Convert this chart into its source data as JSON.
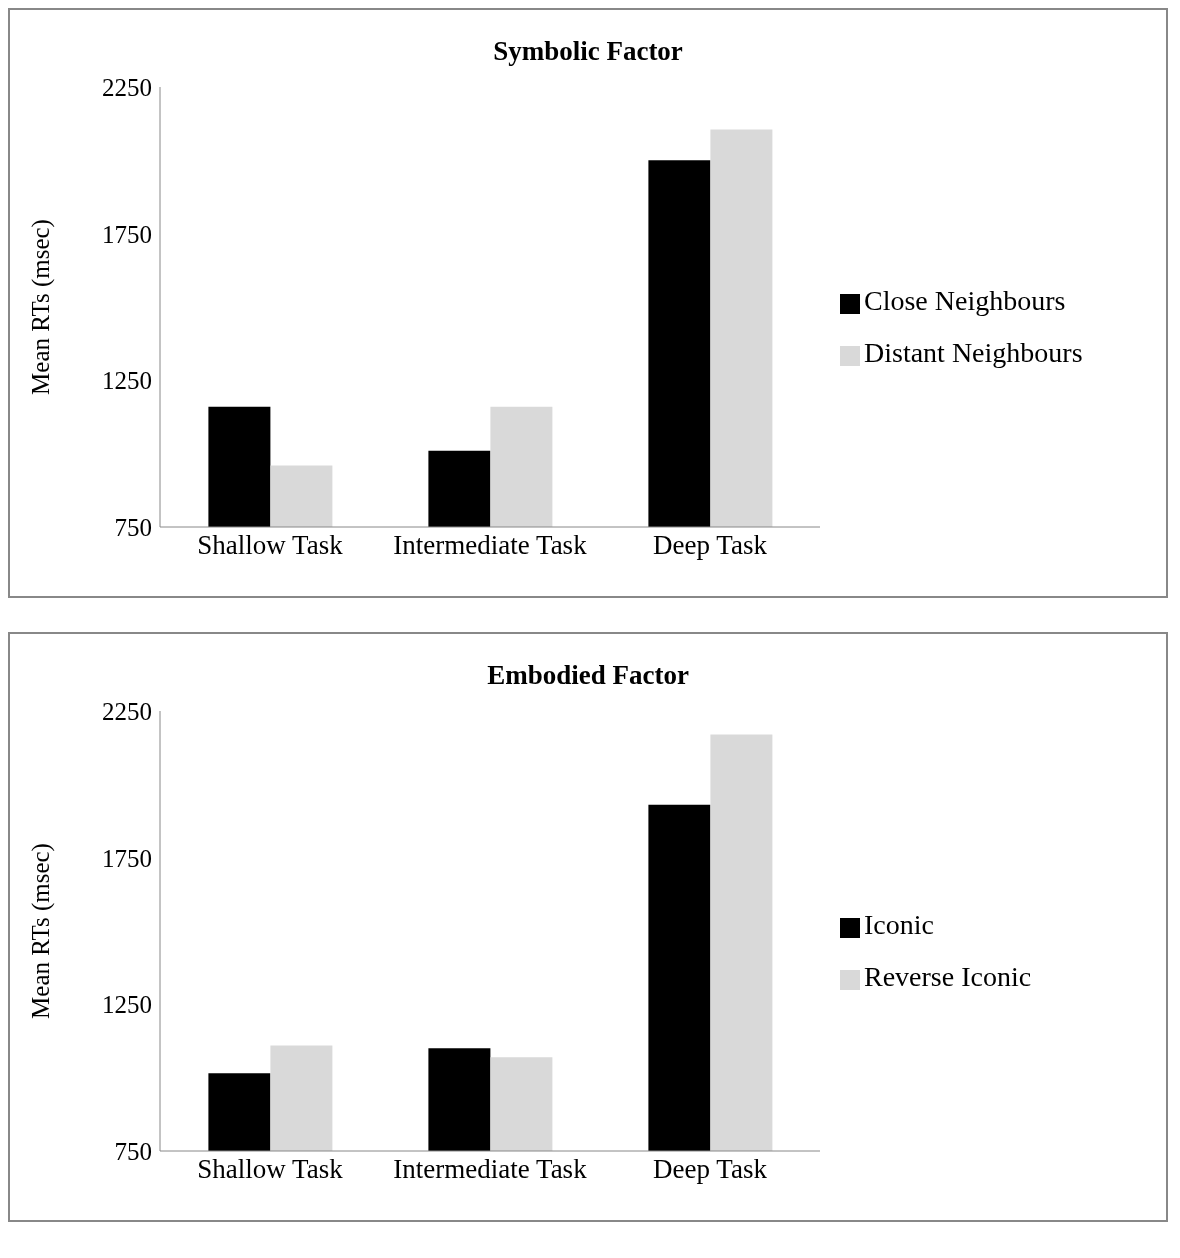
{
  "chart_data": [
    {
      "type": "bar",
      "title": "Symbolic Factor",
      "ylabel": "Mean RTs (msec)",
      "categories": [
        "Shallow Task",
        "Intermediate Task",
        "Deep Task"
      ],
      "series": [
        {
          "name": "Close Neighbours",
          "color": "#000000",
          "values": [
            1160,
            1010,
            2000
          ]
        },
        {
          "name": "Distant Neighbours",
          "color": "#d9d9d9",
          "values": [
            960,
            1160,
            2105
          ]
        }
      ],
      "ylim": [
        750,
        2250
      ],
      "yticks": [
        750,
        1250,
        1750,
        2250
      ],
      "grid": false,
      "legend": "right"
    },
    {
      "type": "bar",
      "title": "Embodied Factor",
      "ylabel": "Mean RTs (msec)",
      "categories": [
        "Shallow Task",
        "Intermediate Task",
        "Deep Task"
      ],
      "series": [
        {
          "name": "Iconic",
          "color": "#000000",
          "values": [
            1015,
            1100,
            1930
          ]
        },
        {
          "name": "Reverse Iconic",
          "color": "#d9d9d9",
          "values": [
            1110,
            1070,
            2170
          ]
        }
      ],
      "ylim": [
        750,
        2250
      ],
      "yticks": [
        750,
        1250,
        1750,
        2250
      ],
      "grid": false,
      "legend": "right"
    }
  ]
}
